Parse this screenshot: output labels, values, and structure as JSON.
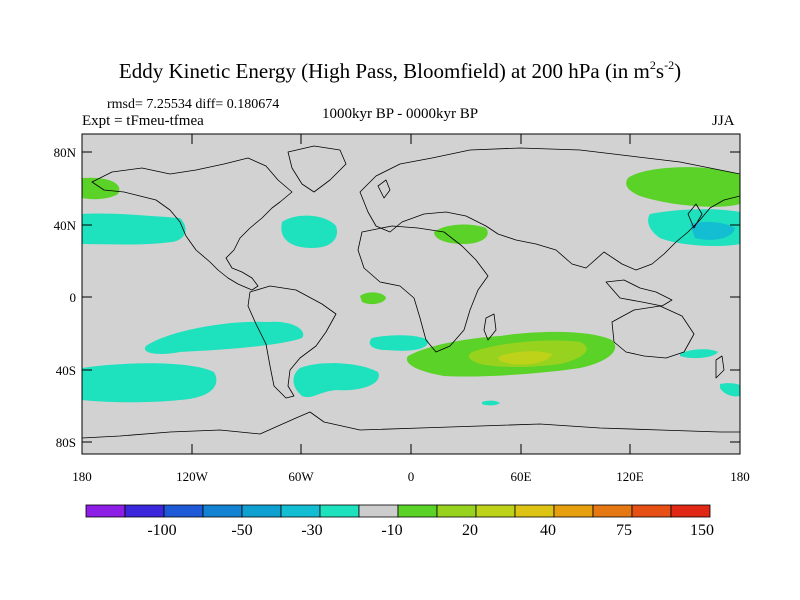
{
  "title": {
    "main": "Eddy Kinetic Energy (High Pass, Bloomfield) at 200 hPa (in m",
    "sup1": "2",
    "mid": "s",
    "sup2": "-2",
    "end": ")"
  },
  "stats": "rmsd= 7.25534 diff= 0.180674",
  "experiment": "Expt = tFmeu-tfmea",
  "period": "1000kyr BP - 0000kyr BP",
  "season": "JJA",
  "map": {
    "lat_ticks": [
      "80N",
      "40N",
      "0",
      "40S",
      "80S"
    ],
    "lon_ticks": [
      "180",
      "120W",
      "60W",
      "0",
      "60E",
      "120E",
      "180"
    ],
    "land_sea_color": "#d2d2d2"
  },
  "colorbar": {
    "colors": [
      "#8c1ee6",
      "#3c28dc",
      "#1e5ad7",
      "#1482d2",
      "#0fa0d2",
      "#14bed2",
      "#1ee1be",
      "#cdcdcd",
      "#5ad228",
      "#96d21e",
      "#bed219",
      "#dcc314",
      "#e6a00f",
      "#e67814",
      "#e65014",
      "#e12814"
    ],
    "labels": [
      "-100",
      "-50",
      "-30",
      "-10",
      "20",
      "40",
      "75",
      "150"
    ]
  }
}
